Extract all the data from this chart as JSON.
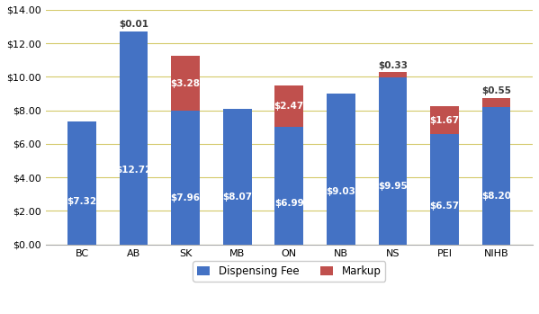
{
  "categories": [
    "BC",
    "AB",
    "SK",
    "MB",
    "ON",
    "NB",
    "NS",
    "PEI",
    "NIHB"
  ],
  "dispensing_fee": [
    7.32,
    12.72,
    7.96,
    8.07,
    6.99,
    9.03,
    9.95,
    6.57,
    8.2
  ],
  "markup": [
    0.0,
    0.01,
    3.28,
    0.0,
    2.47,
    0.0,
    0.33,
    1.67,
    0.55
  ],
  "dispensing_fee_labels": [
    "$7.32",
    "$12.72",
    "$7.96",
    "$8.07",
    "$6.99",
    "$9.03",
    "$9.95",
    "$6.57",
    "$8.20"
  ],
  "markup_labels": [
    "",
    "$0.01",
    "$3.28",
    "",
    "$2.47",
    "",
    "$0.33",
    "$1.67",
    "$0.55"
  ],
  "markup_label_inside_threshold": 0.8,
  "bar_color_blue": "#4472C4",
  "bar_color_red": "#C0504D",
  "background_color": "#FFFFFF",
  "grid_color": "#D4C96A",
  "ylim": [
    0,
    14
  ],
  "yticks": [
    0,
    2,
    4,
    6,
    8,
    10,
    12,
    14
  ],
  "legend_labels": [
    "Dispensing Fee",
    "Markup"
  ],
  "bar_width": 0.55,
  "text_color_white": "#FFFFFF",
  "text_color_dark": "#3A3A3A",
  "fontsize_label": 7.5,
  "fontsize_tick": 8,
  "fontsize_legend": 8.5
}
